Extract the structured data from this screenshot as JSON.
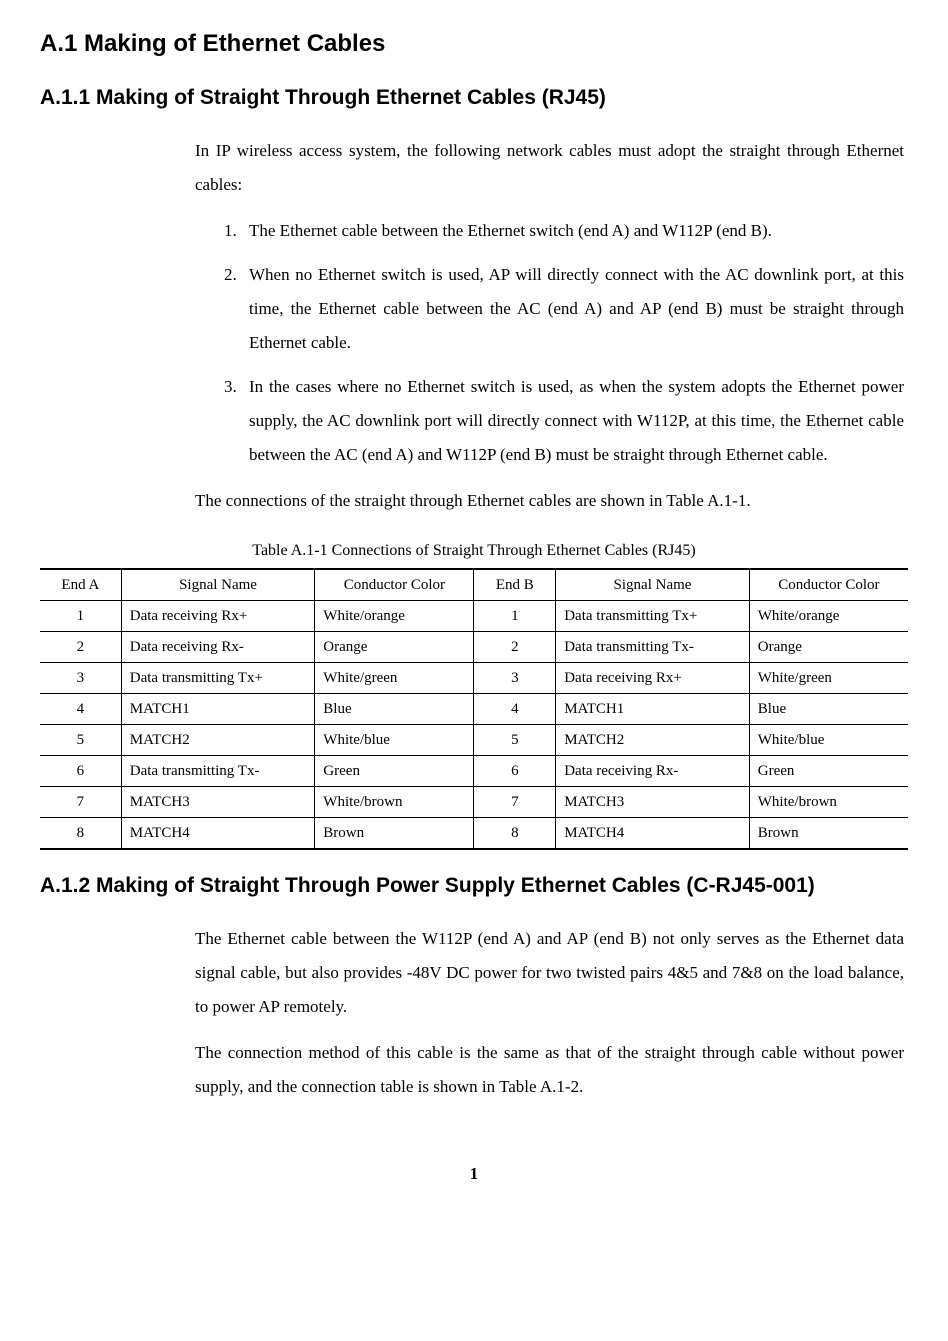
{
  "heading_a1": "A.1 Making of Ethernet Cables",
  "heading_a11": "A.1.1  Making of Straight Through Ethernet Cables (RJ45)",
  "intro_a11": "In IP wireless access system, the following network cables must adopt the straight through Ethernet cables:",
  "list_a11": [
    "The Ethernet cable between the Ethernet switch (end A) and W112P (end B).",
    "When no Ethernet switch is used, AP will directly connect with the AC downlink port, at this time, the Ethernet cable between the AC (end A) and AP (end B) must be straight through Ethernet cable.",
    "In the cases where no Ethernet switch is used, as when the system adopts the Ethernet power supply, the AC downlink port will directly connect with W112P, at this time, the Ethernet cable between the AC (end A) and W112P (end B) must be straight through Ethernet cable."
  ],
  "para_a11_after": "The connections of the straight through Ethernet cables are shown in Table A.1-1.",
  "table_caption": "Table A.1-1  Connections of Straight Through Ethernet Cables (RJ45)",
  "table": {
    "columns": [
      "End A",
      "Signal Name",
      "Conductor Color",
      "End B",
      "Signal Name",
      "Conductor Color"
    ],
    "rows": [
      [
        "1",
        "Data receiving Rx+",
        "White/orange",
        "1",
        "Data transmitting Tx+",
        "White/orange"
      ],
      [
        "2",
        "Data receiving Rx-",
        "Orange",
        "2",
        "Data transmitting Tx-",
        "Orange"
      ],
      [
        "3",
        "Data transmitting Tx+",
        "White/green",
        "3",
        "Data receiving Rx+",
        "White/green"
      ],
      [
        "4",
        "MATCH1",
        "Blue",
        "4",
        "MATCH1",
        "Blue"
      ],
      [
        "5",
        "MATCH2",
        "White/blue",
        "5",
        "MATCH2",
        "White/blue"
      ],
      [
        "6",
        "Data transmitting Tx-",
        "Green",
        "6",
        "Data receiving Rx-",
        "Green"
      ],
      [
        "7",
        "MATCH3",
        "White/brown",
        "7",
        "MATCH3",
        "White/brown"
      ],
      [
        "8",
        "MATCH4",
        "Brown",
        "8",
        "MATCH4",
        "Brown"
      ]
    ]
  },
  "heading_a12": "A.1.2  Making of Straight Through Power Supply Ethernet Cables (C-RJ45-001)",
  "para_a12_1": "The Ethernet cable between the W112P (end A) and AP (end B) not only serves as the Ethernet data signal cable, but also provides -48V DC power for two twisted pairs 4&5 and 7&8 on the load balance, to power AP remotely.",
  "para_a12_2": "The connection method of this cable is the same as that of the straight through cable without power supply, and the connection table is shown in Table A.1-2.",
  "page_number": "1"
}
